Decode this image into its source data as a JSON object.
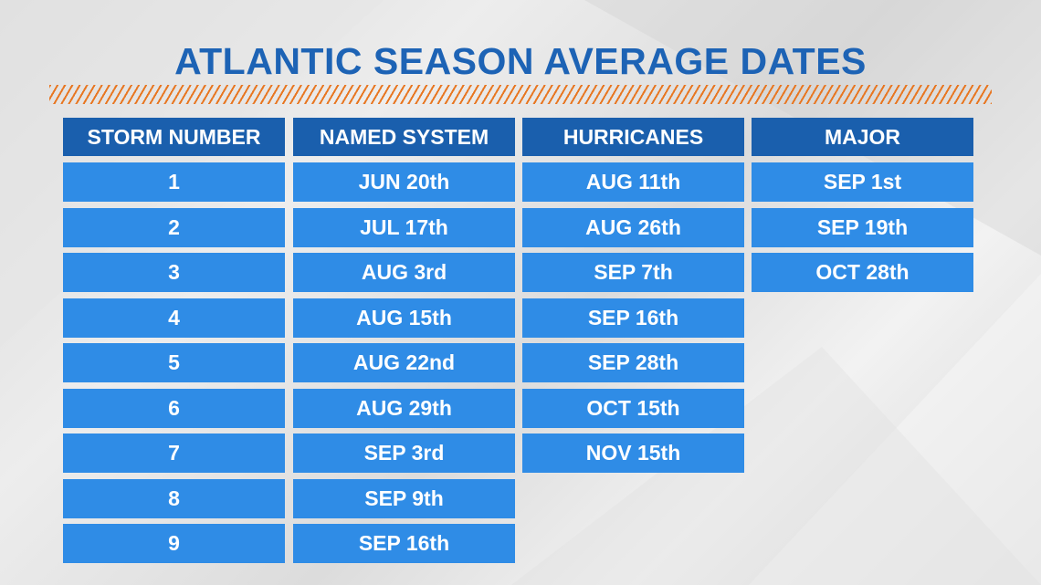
{
  "title": "ATLANTIC SEASON AVERAGE DATES",
  "colors": {
    "title": "#1d63b5",
    "header_bg": "#1a5fad",
    "cell_bg": "#2f8ce6",
    "accent_hatch": "#e87722"
  },
  "columns": [
    {
      "header": "STORM NUMBER",
      "cells": [
        "1",
        "2",
        "3",
        "4",
        "5",
        "6",
        "7",
        "8",
        "9"
      ]
    },
    {
      "header": "NAMED SYSTEM",
      "cells": [
        "JUN 20th",
        "JUL 17th",
        "AUG 3rd",
        "AUG 15th",
        "AUG 22nd",
        "AUG 29th",
        "SEP 3rd",
        "SEP 9th",
        "SEP 16th"
      ]
    },
    {
      "header": "HURRICANES",
      "cells": [
        "AUG 11th",
        "AUG 26th",
        "SEP 7th",
        "SEP 16th",
        "SEP 28th",
        "OCT 15th",
        "NOV 15th"
      ]
    },
    {
      "header": "MAJOR",
      "cells": [
        "SEP 1st",
        "SEP 19th",
        "OCT 28th"
      ]
    }
  ]
}
